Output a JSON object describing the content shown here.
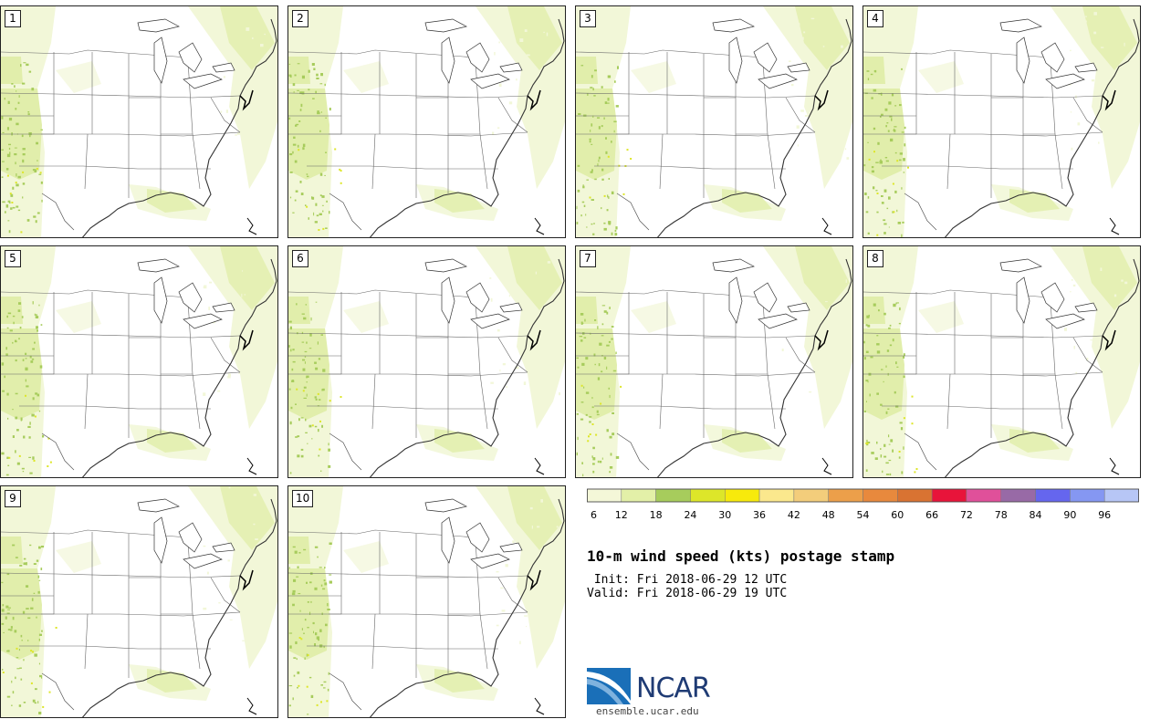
{
  "title": "10-m wind speed (kts) postage stamp",
  "init_line": " Init: Fri 2018-06-29 12 UTC",
  "valid_line": "Valid: Fri 2018-06-29 19 UTC",
  "logo_text": "NCAR",
  "logo_url": "ensemble.ucar.edu",
  "members": [
    "1",
    "2",
    "3",
    "4",
    "5",
    "6",
    "7",
    "8",
    "9",
    "10"
  ],
  "colorbar": {
    "ticks": [
      "6",
      "12",
      "18",
      "24",
      "30",
      "36",
      "42",
      "48",
      "54",
      "60",
      "66",
      "72",
      "78",
      "84",
      "90",
      "96"
    ],
    "colors": [
      "#f4f7d8",
      "#e3f0a8",
      "#a7cc5c",
      "#dde629",
      "#f7ea0c",
      "#fbe88d",
      "#f3cd7b",
      "#ec9f4a",
      "#e8893d",
      "#d97332",
      "#e8143a",
      "#e0509a",
      "#986aa6",
      "#6566ee",
      "#8597f2",
      "#b7c6f6"
    ]
  },
  "colors": {
    "land_light": "#f2f7d8",
    "land_mid": "#e1eeab",
    "land_dark": "#a7cc5c",
    "border": "#333333"
  }
}
